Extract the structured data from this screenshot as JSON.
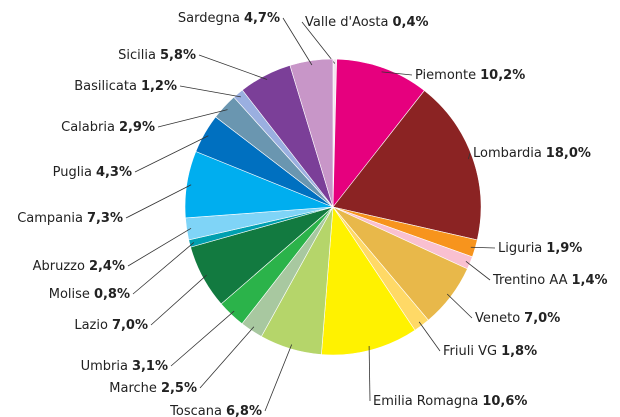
{
  "chart_data": {
    "type": "pie",
    "categories": [
      "Valle d'Aosta",
      "Piemonte",
      "Lombardia",
      "Liguria",
      "Trentino AA",
      "Veneto",
      "Friuli VG",
      "Emilia Romagna",
      "Toscana",
      "Marche",
      "Umbria",
      "Lazio",
      "Molise",
      "Abruzzo",
      "Campania",
      "Puglia",
      "Calabria",
      "Basilicata",
      "Sicilia",
      "Sardegna"
    ],
    "values": [
      0.4,
      10.2,
      18.0,
      1.9,
      1.4,
      7.0,
      1.8,
      10.6,
      6.8,
      2.5,
      3.1,
      7.0,
      0.8,
      2.4,
      7.3,
      4.3,
      2.9,
      1.2,
      5.8,
      4.7
    ],
    "value_labels": [
      "0,4%",
      "10,2%",
      "18,0%",
      "1,9%",
      "1,4%",
      "7,0%",
      "1,8%",
      "10,6%",
      "6,8%",
      "2,5%",
      "3,1%",
      "7,0%",
      "0,8%",
      "2,4%",
      "7,3%",
      "4,3%",
      "2,9%",
      "1,2%",
      "5,8%",
      "4,7%"
    ],
    "colors": [
      "#f3e4f0",
      "#e6007e",
      "#8b2323",
      "#f7941d",
      "#f9c0d0",
      "#e8b84a",
      "#ffd966",
      "#fff200",
      "#b5d56a",
      "#a8c8a0",
      "#2bb34a",
      "#127a40",
      "#00a0b0",
      "#7fd4f7",
      "#00aeef",
      "#0070c0",
      "#6a96b0",
      "#9aafe0",
      "#7b3f98",
      "#c896c8"
    ]
  }
}
